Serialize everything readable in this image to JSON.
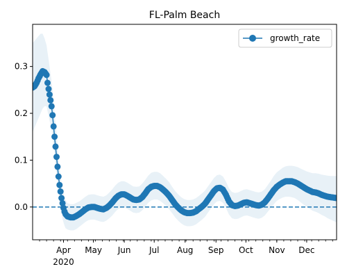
{
  "chart_data": {
    "type": "line",
    "title": "FL-Palm Beach",
    "xlabel": "",
    "ylabel": "",
    "x_start": "2020-03-01",
    "x_end": "2020-12-31",
    "xlim": [
      "2020-03-01",
      "2020-12-31"
    ],
    "ylim": [
      -0.07,
      0.39
    ],
    "x_ticks": [
      {
        "date": "2020-04-01",
        "label": "Apr",
        "sublabel": "2020"
      },
      {
        "date": "2020-05-01",
        "label": "May"
      },
      {
        "date": "2020-06-01",
        "label": "Jun"
      },
      {
        "date": "2020-07-01",
        "label": "Jul"
      },
      {
        "date": "2020-08-01",
        "label": "Aug"
      },
      {
        "date": "2020-09-01",
        "label": "Sep"
      },
      {
        "date": "2020-10-01",
        "label": "Oct"
      },
      {
        "date": "2020-11-01",
        "label": "Nov"
      },
      {
        "date": "2020-12-01",
        "label": "Dec"
      }
    ],
    "y_ticks": [
      {
        "value": 0.0,
        "label": "0.0"
      },
      {
        "value": 0.1,
        "label": "0.1"
      },
      {
        "value": 0.2,
        "label": "0.2"
      },
      {
        "value": 0.3,
        "label": "0.3"
      }
    ],
    "reference_line": {
      "y": 0.0,
      "style": "dashed"
    },
    "legend": {
      "position": "upper-right",
      "entries": [
        "growth_rate"
      ]
    },
    "grid": false,
    "series": [
      {
        "name": "growth_rate",
        "color": "#1f77b4",
        "band_color": "#1f77b4",
        "band_opacity": 0.1,
        "points": [
          {
            "x": "2020-03-01",
            "y": 0.255,
            "lo": 0.16,
            "hi": 0.35
          },
          {
            "x": "2020-03-03",
            "y": 0.258,
            "lo": 0.17,
            "hi": 0.355
          },
          {
            "x": "2020-03-05",
            "y": 0.265,
            "lo": 0.18,
            "hi": 0.36
          },
          {
            "x": "2020-03-07",
            "y": 0.275,
            "lo": 0.19,
            "hi": 0.365
          },
          {
            "x": "2020-03-09",
            "y": 0.283,
            "lo": 0.2,
            "hi": 0.37
          },
          {
            "x": "2020-03-11",
            "y": 0.29,
            "lo": 0.21,
            "hi": 0.37
          },
          {
            "x": "2020-03-13",
            "y": 0.288,
            "lo": 0.215,
            "hi": 0.36
          },
          {
            "x": "2020-03-15",
            "y": 0.282,
            "lo": 0.215,
            "hi": 0.345
          },
          {
            "x": "2020-03-16",
            "y": 0.265,
            "lo": 0.205,
            "hi": 0.33
          },
          {
            "x": "2020-03-17",
            "y": 0.252,
            "lo": 0.195,
            "hi": 0.315
          },
          {
            "x": "2020-03-18",
            "y": 0.24,
            "lo": 0.185,
            "hi": 0.3
          },
          {
            "x": "2020-03-19",
            "y": 0.228,
            "lo": 0.175,
            "hi": 0.285
          },
          {
            "x": "2020-03-20",
            "y": 0.215,
            "lo": 0.165,
            "hi": 0.27
          },
          {
            "x": "2020-03-21",
            "y": 0.196,
            "lo": 0.15,
            "hi": 0.25
          },
          {
            "x": "2020-03-22",
            "y": 0.172,
            "lo": 0.13,
            "hi": 0.225
          },
          {
            "x": "2020-03-23",
            "y": 0.15,
            "lo": 0.11,
            "hi": 0.2
          },
          {
            "x": "2020-03-24",
            "y": 0.129,
            "lo": 0.09,
            "hi": 0.18
          },
          {
            "x": "2020-03-25",
            "y": 0.107,
            "lo": 0.07,
            "hi": 0.155
          },
          {
            "x": "2020-03-26",
            "y": 0.086,
            "lo": 0.05,
            "hi": 0.13
          },
          {
            "x": "2020-03-27",
            "y": 0.065,
            "lo": 0.03,
            "hi": 0.105
          },
          {
            "x": "2020-03-28",
            "y": 0.047,
            "lo": 0.015,
            "hi": 0.085
          },
          {
            "x": "2020-03-29",
            "y": 0.033,
            "lo": 0.0,
            "hi": 0.068
          },
          {
            "x": "2020-03-30",
            "y": 0.019,
            "lo": -0.015,
            "hi": 0.052
          },
          {
            "x": "2020-03-31",
            "y": 0.008,
            "lo": -0.025,
            "hi": 0.04
          },
          {
            "x": "2020-04-01",
            "y": -0.002,
            "lo": -0.033,
            "hi": 0.03
          },
          {
            "x": "2020-04-02",
            "y": -0.01,
            "lo": -0.04,
            "hi": 0.021
          },
          {
            "x": "2020-04-03",
            "y": -0.015,
            "lo": -0.045,
            "hi": 0.015
          },
          {
            "x": "2020-04-05",
            "y": -0.02,
            "lo": -0.048,
            "hi": 0.008
          },
          {
            "x": "2020-04-08",
            "y": -0.022,
            "lo": -0.05,
            "hi": 0.006
          },
          {
            "x": "2020-04-11",
            "y": -0.022,
            "lo": -0.05,
            "hi": 0.006
          },
          {
            "x": "2020-04-14",
            "y": -0.019,
            "lo": -0.047,
            "hi": 0.009
          },
          {
            "x": "2020-04-17",
            "y": -0.015,
            "lo": -0.042,
            "hi": 0.012
          },
          {
            "x": "2020-04-20",
            "y": -0.01,
            "lo": -0.037,
            "hi": 0.017
          },
          {
            "x": "2020-04-23",
            "y": -0.005,
            "lo": -0.032,
            "hi": 0.022
          },
          {
            "x": "2020-04-26",
            "y": -0.001,
            "lo": -0.028,
            "hi": 0.026
          },
          {
            "x": "2020-04-29",
            "y": 0.0,
            "lo": -0.027,
            "hi": 0.027
          },
          {
            "x": "2020-05-02",
            "y": 0.0,
            "lo": -0.027,
            "hi": 0.027
          },
          {
            "x": "2020-05-05",
            "y": -0.002,
            "lo": -0.029,
            "hi": 0.025
          },
          {
            "x": "2020-05-08",
            "y": -0.004,
            "lo": -0.031,
            "hi": 0.023
          },
          {
            "x": "2020-05-11",
            "y": -0.005,
            "lo": -0.032,
            "hi": 0.022
          },
          {
            "x": "2020-05-14",
            "y": -0.002,
            "lo": -0.029,
            "hi": 0.025
          },
          {
            "x": "2020-05-17",
            "y": 0.003,
            "lo": -0.024,
            "hi": 0.031
          },
          {
            "x": "2020-05-20",
            "y": 0.01,
            "lo": -0.018,
            "hi": 0.038
          },
          {
            "x": "2020-05-23",
            "y": 0.018,
            "lo": -0.01,
            "hi": 0.046
          },
          {
            "x": "2020-05-26",
            "y": 0.024,
            "lo": -0.004,
            "hi": 0.052
          },
          {
            "x": "2020-05-29",
            "y": 0.027,
            "lo": -0.001,
            "hi": 0.055
          },
          {
            "x": "2020-06-01",
            "y": 0.027,
            "lo": -0.001,
            "hi": 0.055
          },
          {
            "x": "2020-06-04",
            "y": 0.024,
            "lo": -0.004,
            "hi": 0.052
          },
          {
            "x": "2020-06-07",
            "y": 0.02,
            "lo": -0.008,
            "hi": 0.048
          },
          {
            "x": "2020-06-10",
            "y": 0.016,
            "lo": -0.012,
            "hi": 0.044
          },
          {
            "x": "2020-06-13",
            "y": 0.015,
            "lo": -0.013,
            "hi": 0.043
          },
          {
            "x": "2020-06-16",
            "y": 0.016,
            "lo": -0.012,
            "hi": 0.044
          },
          {
            "x": "2020-06-19",
            "y": 0.021,
            "lo": -0.007,
            "hi": 0.05
          },
          {
            "x": "2020-06-22",
            "y": 0.029,
            "lo": 0.0,
            "hi": 0.058
          },
          {
            "x": "2020-06-25",
            "y": 0.038,
            "lo": 0.009,
            "hi": 0.067
          },
          {
            "x": "2020-06-28",
            "y": 0.043,
            "lo": 0.014,
            "hi": 0.073
          },
          {
            "x": "2020-07-01",
            "y": 0.045,
            "lo": 0.016,
            "hi": 0.075
          },
          {
            "x": "2020-07-04",
            "y": 0.045,
            "lo": 0.016,
            "hi": 0.075
          },
          {
            "x": "2020-07-07",
            "y": 0.042,
            "lo": 0.013,
            "hi": 0.072
          },
          {
            "x": "2020-07-10",
            "y": 0.037,
            "lo": 0.008,
            "hi": 0.066
          },
          {
            "x": "2020-07-13",
            "y": 0.031,
            "lo": 0.002,
            "hi": 0.06
          },
          {
            "x": "2020-07-16",
            "y": 0.024,
            "lo": -0.005,
            "hi": 0.053
          },
          {
            "x": "2020-07-19",
            "y": 0.015,
            "lo": -0.013,
            "hi": 0.043
          },
          {
            "x": "2020-07-22",
            "y": 0.006,
            "lo": -0.022,
            "hi": 0.034
          },
          {
            "x": "2020-07-25",
            "y": -0.001,
            "lo": -0.029,
            "hi": 0.027
          },
          {
            "x": "2020-07-28",
            "y": -0.007,
            "lo": -0.035,
            "hi": 0.021
          },
          {
            "x": "2020-07-31",
            "y": -0.011,
            "lo": -0.039,
            "hi": 0.017
          },
          {
            "x": "2020-08-03",
            "y": -0.013,
            "lo": -0.041,
            "hi": 0.015
          },
          {
            "x": "2020-08-06",
            "y": -0.013,
            "lo": -0.041,
            "hi": 0.015
          },
          {
            "x": "2020-08-09",
            "y": -0.012,
            "lo": -0.04,
            "hi": 0.016
          },
          {
            "x": "2020-08-12",
            "y": -0.009,
            "lo": -0.037,
            "hi": 0.019
          },
          {
            "x": "2020-08-15",
            "y": -0.004,
            "lo": -0.032,
            "hi": 0.024
          },
          {
            "x": "2020-08-18",
            "y": 0.001,
            "lo": -0.027,
            "hi": 0.029
          },
          {
            "x": "2020-08-21",
            "y": 0.007,
            "lo": -0.021,
            "hi": 0.035
          },
          {
            "x": "2020-08-24",
            "y": 0.016,
            "lo": -0.012,
            "hi": 0.044
          },
          {
            "x": "2020-08-27",
            "y": 0.025,
            "lo": -0.003,
            "hi": 0.053
          },
          {
            "x": "2020-08-30",
            "y": 0.034,
            "lo": 0.006,
            "hi": 0.062
          },
          {
            "x": "2020-09-02",
            "y": 0.04,
            "lo": 0.012,
            "hi": 0.068
          },
          {
            "x": "2020-09-05",
            "y": 0.041,
            "lo": 0.013,
            "hi": 0.069
          },
          {
            "x": "2020-09-08",
            "y": 0.037,
            "lo": 0.009,
            "hi": 0.065
          },
          {
            "x": "2020-09-11",
            "y": 0.026,
            "lo": -0.002,
            "hi": 0.054
          },
          {
            "x": "2020-09-14",
            "y": 0.012,
            "lo": -0.016,
            "hi": 0.04
          },
          {
            "x": "2020-09-17",
            "y": 0.004,
            "lo": -0.024,
            "hi": 0.032
          },
          {
            "x": "2020-09-20",
            "y": 0.002,
            "lo": -0.026,
            "hi": 0.03
          },
          {
            "x": "2020-09-23",
            "y": 0.003,
            "lo": -0.025,
            "hi": 0.031
          },
          {
            "x": "2020-09-26",
            "y": 0.006,
            "lo": -0.022,
            "hi": 0.034
          },
          {
            "x": "2020-09-29",
            "y": 0.009,
            "lo": -0.019,
            "hi": 0.037
          },
          {
            "x": "2020-10-02",
            "y": 0.01,
            "lo": -0.018,
            "hi": 0.038
          },
          {
            "x": "2020-10-05",
            "y": 0.008,
            "lo": -0.02,
            "hi": 0.036
          },
          {
            "x": "2020-10-08",
            "y": 0.006,
            "lo": -0.022,
            "hi": 0.034
          },
          {
            "x": "2020-10-11",
            "y": 0.004,
            "lo": -0.024,
            "hi": 0.032
          },
          {
            "x": "2020-10-14",
            "y": 0.003,
            "lo": -0.025,
            "hi": 0.031
          },
          {
            "x": "2020-10-17",
            "y": 0.005,
            "lo": -0.023,
            "hi": 0.033
          },
          {
            "x": "2020-10-20",
            "y": 0.01,
            "lo": -0.018,
            "hi": 0.038
          },
          {
            "x": "2020-10-23",
            "y": 0.018,
            "lo": -0.01,
            "hi": 0.047
          },
          {
            "x": "2020-10-26",
            "y": 0.027,
            "lo": -0.002,
            "hi": 0.056
          },
          {
            "x": "2020-10-29",
            "y": 0.036,
            "lo": 0.006,
            "hi": 0.066
          },
          {
            "x": "2020-11-01",
            "y": 0.043,
            "lo": 0.013,
            "hi": 0.074
          },
          {
            "x": "2020-11-04",
            "y": 0.048,
            "lo": 0.017,
            "hi": 0.079
          },
          {
            "x": "2020-11-07",
            "y": 0.052,
            "lo": 0.02,
            "hi": 0.084
          },
          {
            "x": "2020-11-10",
            "y": 0.055,
            "lo": 0.022,
            "hi": 0.087
          },
          {
            "x": "2020-11-13",
            "y": 0.055,
            "lo": 0.022,
            "hi": 0.088
          },
          {
            "x": "2020-11-16",
            "y": 0.055,
            "lo": 0.021,
            "hi": 0.088
          },
          {
            "x": "2020-11-19",
            "y": 0.053,
            "lo": 0.019,
            "hi": 0.087
          },
          {
            "x": "2020-11-22",
            "y": 0.05,
            "lo": 0.015,
            "hi": 0.085
          },
          {
            "x": "2020-11-25",
            "y": 0.046,
            "lo": 0.01,
            "hi": 0.082
          },
          {
            "x": "2020-11-28",
            "y": 0.042,
            "lo": 0.005,
            "hi": 0.079
          },
          {
            "x": "2020-12-01",
            "y": 0.038,
            "lo": 0.0,
            "hi": 0.076
          },
          {
            "x": "2020-12-04",
            "y": 0.035,
            "lo": -0.004,
            "hi": 0.074
          },
          {
            "x": "2020-12-07",
            "y": 0.032,
            "lo": -0.008,
            "hi": 0.072
          },
          {
            "x": "2020-12-10",
            "y": 0.031,
            "lo": -0.01,
            "hi": 0.072
          },
          {
            "x": "2020-12-13",
            "y": 0.029,
            "lo": -0.013,
            "hi": 0.071
          },
          {
            "x": "2020-12-16",
            "y": 0.026,
            "lo": -0.017,
            "hi": 0.069
          },
          {
            "x": "2020-12-19",
            "y": 0.024,
            "lo": -0.02,
            "hi": 0.068
          },
          {
            "x": "2020-12-22",
            "y": 0.022,
            "lo": -0.024,
            "hi": 0.067
          },
          {
            "x": "2020-12-25",
            "y": 0.021,
            "lo": -0.027,
            "hi": 0.066
          },
          {
            "x": "2020-12-28",
            "y": 0.02,
            "lo": -0.03,
            "hi": 0.066
          },
          {
            "x": "2020-12-31",
            "y": 0.019,
            "lo": -0.033,
            "hi": 0.066
          }
        ]
      }
    ]
  }
}
